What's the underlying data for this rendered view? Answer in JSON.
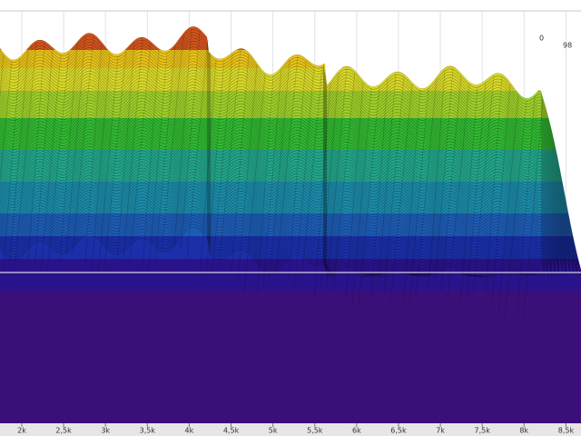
{
  "chart_data": {
    "type": "waterfall",
    "xlim": [
      1740,
      8680
    ],
    "xticks": [
      {
        "value": 2000,
        "label": "2k"
      },
      {
        "value": 2500,
        "label": "2,5k"
      },
      {
        "value": 3000,
        "label": "3k"
      },
      {
        "value": 3500,
        "label": "3,5k"
      },
      {
        "value": 4000,
        "label": "4k"
      },
      {
        "value": 4500,
        "label": "4,5k"
      },
      {
        "value": 5000,
        "label": "5k"
      },
      {
        "value": 5500,
        "label": "5,5k"
      },
      {
        "value": 6000,
        "label": "6k"
      },
      {
        "value": 6500,
        "label": "6,5k"
      },
      {
        "value": 7000,
        "label": "7k"
      },
      {
        "value": 7500,
        "label": "7,5k"
      },
      {
        "value": 8000,
        "label": "8k"
      },
      {
        "value": 8500,
        "label": "8,5k"
      }
    ],
    "depth_labels": [
      "0",
      "98"
    ],
    "grid": true
  }
}
